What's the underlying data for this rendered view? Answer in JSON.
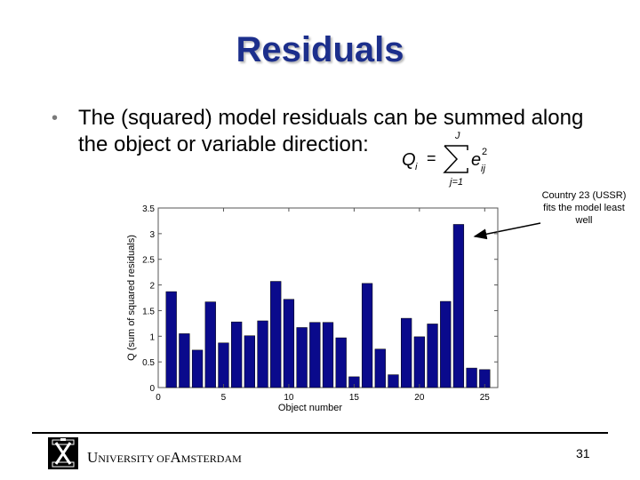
{
  "slide": {
    "title": "Residuals",
    "bullet_symbol": "•",
    "bullet_text": "The (squared) model residuals can be summed along the object or variable direction:",
    "annotation": "Country 23 (USSR) fits the model least well",
    "page_number": "31"
  },
  "formula": {
    "lhs": "Q",
    "lhs_sub": "i",
    "equals": "=",
    "sum_upper": "J",
    "sum_lower": "j=1",
    "term": "e",
    "term_sub": "ij",
    "term_sup": "2"
  },
  "footer": {
    "u_initial": "U",
    "u_rest": "NIVERSITY OF",
    "a_initial": "A",
    "a_rest": "MSTERDAM"
  },
  "colors": {
    "title": "#1c2f8c",
    "bar": "#0a0a8c"
  },
  "chart_data": {
    "type": "bar",
    "xlabel": "Object number",
    "ylabel": "Q (sum of squared residuals)",
    "categories": [
      1,
      2,
      3,
      4,
      5,
      6,
      7,
      8,
      9,
      10,
      11,
      12,
      13,
      14,
      15,
      16,
      17,
      18,
      19,
      20,
      21,
      22,
      23,
      24,
      25,
      26
    ],
    "values": [
      1.87,
      1.05,
      0.73,
      1.67,
      0.87,
      1.28,
      1.01,
      1.3,
      2.07,
      1.72,
      1.17,
      1.27,
      1.27,
      0.97,
      0.21,
      2.03,
      0.75,
      0.25,
      1.35,
      0.99,
      1.24,
      1.68,
      3.18,
      0.38,
      0.35,
      0.0
    ],
    "xticks": [
      0,
      5,
      10,
      15,
      20,
      25
    ],
    "yticks": [
      0,
      0.5,
      1,
      1.5,
      2,
      2.5,
      3,
      3.5
    ],
    "ylim": [
      0,
      3.5
    ],
    "xlim": [
      0,
      26
    ],
    "grid": false
  }
}
